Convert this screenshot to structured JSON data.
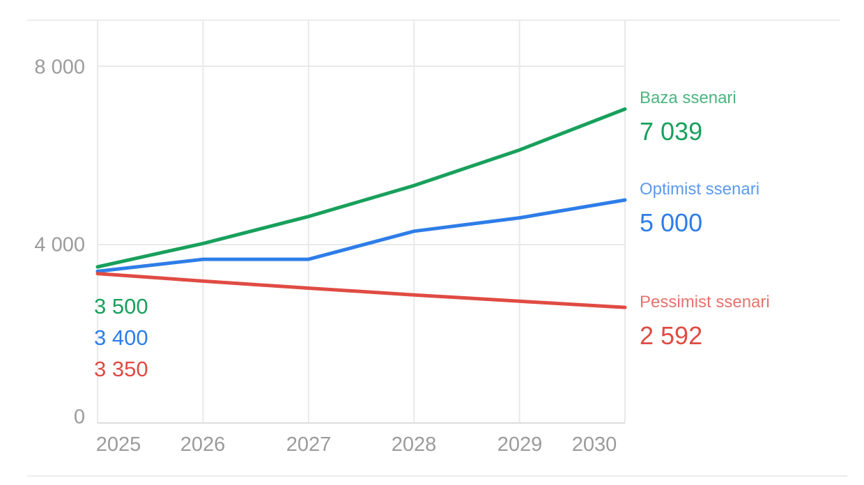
{
  "chart_data": {
    "type": "line",
    "title": "",
    "x": [
      2025,
      2026,
      2027,
      2028,
      2029,
      2030
    ],
    "x_labels": [
      "2025",
      "2026",
      "2027",
      "2028",
      "2029",
      "2030"
    ],
    "y_ticks": [
      {
        "value": 0,
        "label": "0"
      },
      {
        "value": 4000,
        "label": "4 000"
      },
      {
        "value": 8000,
        "label": "8 000"
      }
    ],
    "ylim": [
      0,
      9000
    ],
    "grid": true,
    "legend_position": "right",
    "series": [
      {
        "name": "Baza ssenari",
        "color": "#18A05C",
        "values": [
          3500,
          4025,
          4629,
          5323,
          6122,
          7039
        ],
        "start_label": "3 500",
        "end_label": "7 039"
      },
      {
        "name": "Optimist ssenari",
        "color": "#2E7DE8",
        "values": [
          3400,
          3670,
          3670,
          4300,
          4600,
          5000
        ],
        "start_label": "3 400",
        "end_label": "5 000"
      },
      {
        "name": "Pessimist ssenari",
        "color": "#E04B43",
        "values": [
          3350,
          3182,
          3023,
          2872,
          2729,
          2592
        ],
        "start_label": "3 350",
        "end_label": "2 592"
      }
    ]
  },
  "colors": {
    "grid": "#E9E9E9",
    "axis": "#DCDCDC",
    "frame": "#ECECEC",
    "tick_text": "#9B9B9B",
    "background": "#FFFFFF"
  }
}
